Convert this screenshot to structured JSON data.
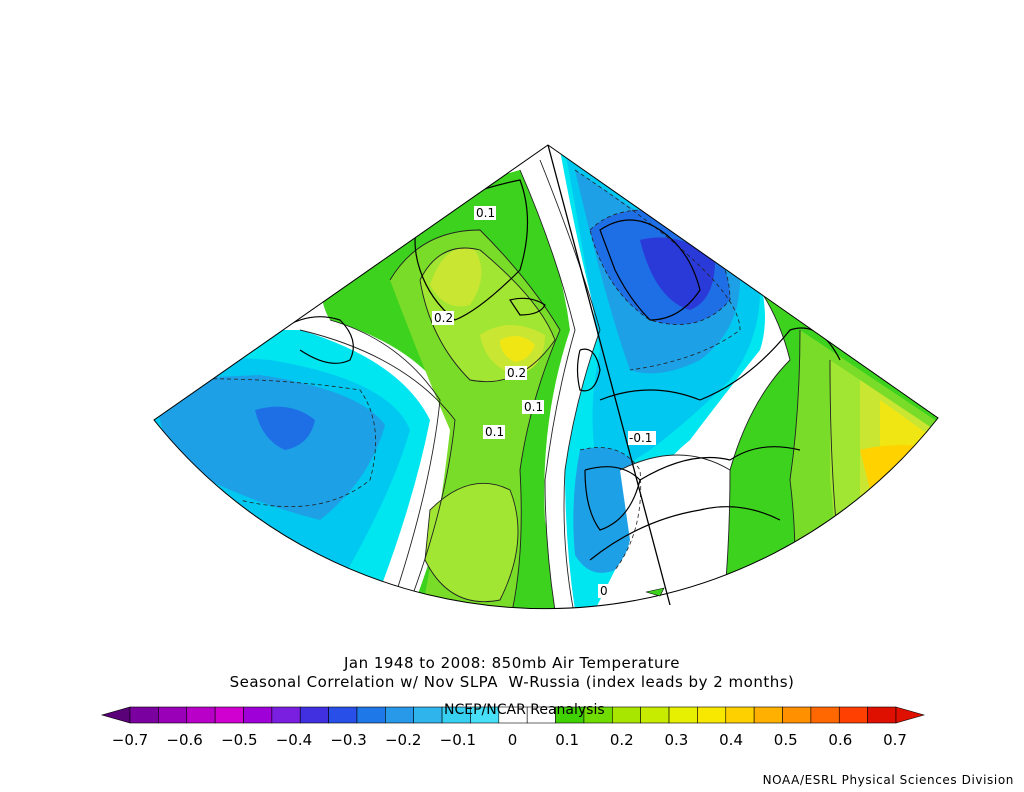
{
  "title_line1": "Jan 1948 to 2008: 850mb Air Temperature",
  "title_line2": "Seasonal Correlation w/ Nov SLPA  W-Russia (index leads by 2 months)",
  "overlay_label": "NCEP/NCAR Reanalysis",
  "credit": "NOAA/ESRL Physical Sciences Division",
  "contour_labels": [
    "0.1",
    "0.2",
    "0.2",
    "0.1",
    "0.1",
    "-0.1",
    "0"
  ],
  "colorbar": {
    "ticks": [
      "−0.7",
      "−0.6",
      "−0.5",
      "−0.4",
      "−0.3",
      "−0.2",
      "−0.1",
      "0",
      "0.1",
      "0.2",
      "0.3",
      "0.4",
      "0.5",
      "0.6",
      "0.7"
    ],
    "colors": [
      "#7a00a0",
      "#9a00b8",
      "#b800c8",
      "#d000d0",
      "#a000d8",
      "#7a1ee0",
      "#4030e0",
      "#2850e8",
      "#1e78e8",
      "#2898e8",
      "#30b4ec",
      "#38d0f0",
      "#48e0f8",
      "#ffffff",
      "#ffffff",
      "#40d200",
      "#70dc00",
      "#a8e600",
      "#c8ec00",
      "#e6f000",
      "#f8e800",
      "#ffd000",
      "#ffb000",
      "#ff9000",
      "#ff6800",
      "#ff4000",
      "#e01000"
    ]
  },
  "fields": {
    "colors": {
      "ocean_cyan": "#00e6f0",
      "light_blue": "#00c8f0",
      "mid_blue": "#1ea0e6",
      "deep_blue": "#1e6ee6",
      "dark_blue": "#2a3ad8",
      "green": "#3cd21e",
      "lime": "#78dc28",
      "yellow_green": "#a0e632",
      "olive_yellow": "#c8e632",
      "yellow": "#f0e614",
      "gold": "#ffd200"
    }
  }
}
